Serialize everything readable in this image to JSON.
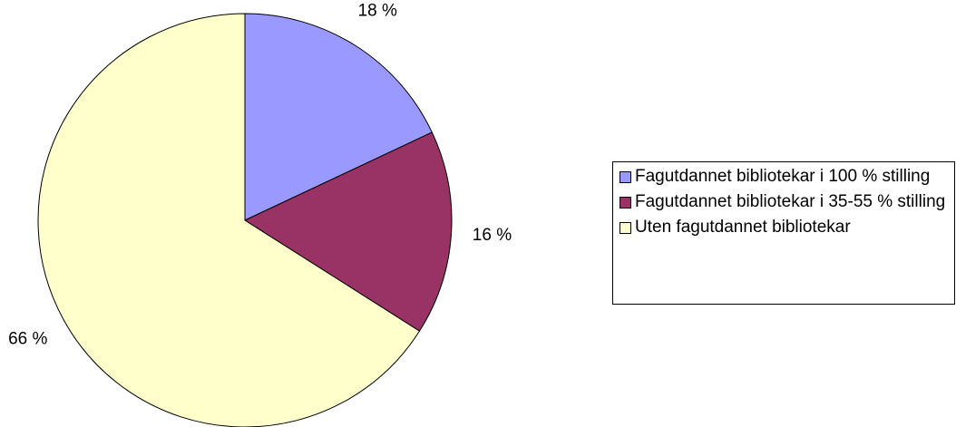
{
  "chart_data": {
    "type": "pie",
    "categories": [
      "Fagutdannet bibliotekar i 100 % stilling",
      "Fagutdannet bibliotekar i 35-55 % stilling",
      "Uten fagutdannet bibliotekar"
    ],
    "values": [
      18,
      16,
      66
    ],
    "value_labels": [
      "18 %",
      "16 %",
      "66 %"
    ],
    "colors": [
      "#9999ff",
      "#993366",
      "#ffffcc"
    ],
    "legend": "right"
  }
}
